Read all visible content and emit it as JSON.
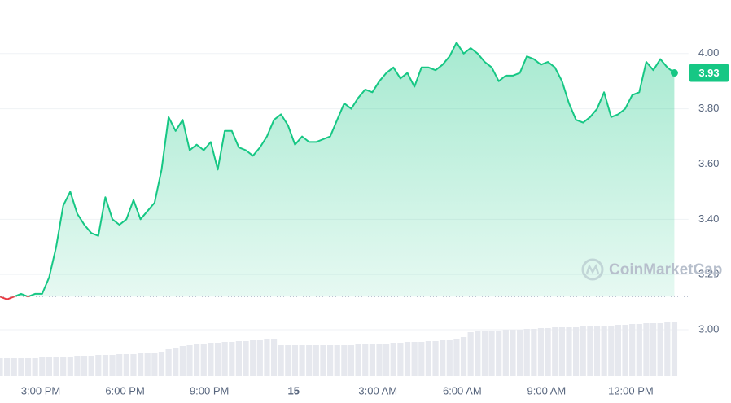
{
  "chart_data": {
    "type": "line",
    "series": [
      {
        "name": "Price",
        "color": "#16c784",
        "below_color": "#ea3943",
        "values": [
          3.12,
          3.11,
          3.12,
          3.13,
          3.12,
          3.13,
          3.13,
          3.19,
          3.3,
          3.45,
          3.5,
          3.42,
          3.38,
          3.35,
          3.34,
          3.48,
          3.4,
          3.38,
          3.4,
          3.47,
          3.4,
          3.43,
          3.46,
          3.58,
          3.77,
          3.72,
          3.76,
          3.65,
          3.67,
          3.65,
          3.68,
          3.58,
          3.72,
          3.72,
          3.66,
          3.65,
          3.63,
          3.66,
          3.7,
          3.76,
          3.78,
          3.74,
          3.67,
          3.7,
          3.68,
          3.68,
          3.69,
          3.7,
          3.76,
          3.82,
          3.8,
          3.84,
          3.87,
          3.86,
          3.9,
          3.93,
          3.95,
          3.91,
          3.93,
          3.88,
          3.95,
          3.95,
          3.94,
          3.96,
          3.99,
          4.04,
          4.0,
          4.02,
          4.0,
          3.97,
          3.95,
          3.9,
          3.92,
          3.92,
          3.93,
          3.99,
          3.98,
          3.96,
          3.97,
          3.95,
          3.9,
          3.82,
          3.76,
          3.75,
          3.77,
          3.8,
          3.86,
          3.77,
          3.78,
          3.8,
          3.85,
          3.86,
          3.97,
          3.94,
          3.98,
          3.95,
          3.93
        ]
      }
    ],
    "volume": [
      22,
      22,
      22,
      22,
      22,
      22,
      23,
      23,
      24,
      24,
      24,
      25,
      25,
      25,
      26,
      26,
      26,
      27,
      27,
      27,
      28,
      28,
      29,
      30,
      33,
      35,
      37,
      38,
      39,
      40,
      41,
      41,
      42,
      42,
      43,
      43,
      44,
      44,
      45,
      45,
      38,
      38,
      38,
      38,
      38,
      38,
      38,
      38,
      38,
      38,
      38,
      39,
      39,
      39,
      40,
      40,
      41,
      41,
      42,
      42,
      42,
      43,
      43,
      44,
      44,
      46,
      48,
      54,
      55,
      55,
      56,
      56,
      57,
      57,
      57,
      58,
      58,
      59,
      59,
      60,
      60,
      60,
      60,
      61,
      61,
      61,
      62,
      62,
      63,
      63,
      64,
      64,
      65,
      65,
      65,
      66,
      66
    ],
    "baseline": 3.12,
    "last_value_label": "3.93",
    "watermark": "CoinMarketCap",
    "xlim": [
      0,
      98
    ],
    "xticks": [
      {
        "value": 5.8,
        "label": "3:00 PM"
      },
      {
        "value": 17.8,
        "label": "6:00 PM"
      },
      {
        "value": 29.8,
        "label": "9:00 PM"
      },
      {
        "value": 41.8,
        "label": "15"
      },
      {
        "value": 53.8,
        "label": "3:00 AM"
      },
      {
        "value": 65.8,
        "label": "6:00 AM"
      },
      {
        "value": 77.8,
        "label": "9:00 AM"
      },
      {
        "value": 89.8,
        "label": "12:00 PM"
      }
    ],
    "ylim": [
      2.832,
      4.194
    ],
    "yticks": [
      {
        "value": 3,
        "label": "3.00"
      },
      {
        "value": 3.2,
        "label": "3.20"
      },
      {
        "value": 3.4,
        "label": "3.40"
      },
      {
        "value": 3.6,
        "label": "3.60"
      },
      {
        "value": 3.8,
        "label": "3.80"
      },
      {
        "value": 4,
        "label": "4.00"
      }
    ],
    "grid": true
  }
}
